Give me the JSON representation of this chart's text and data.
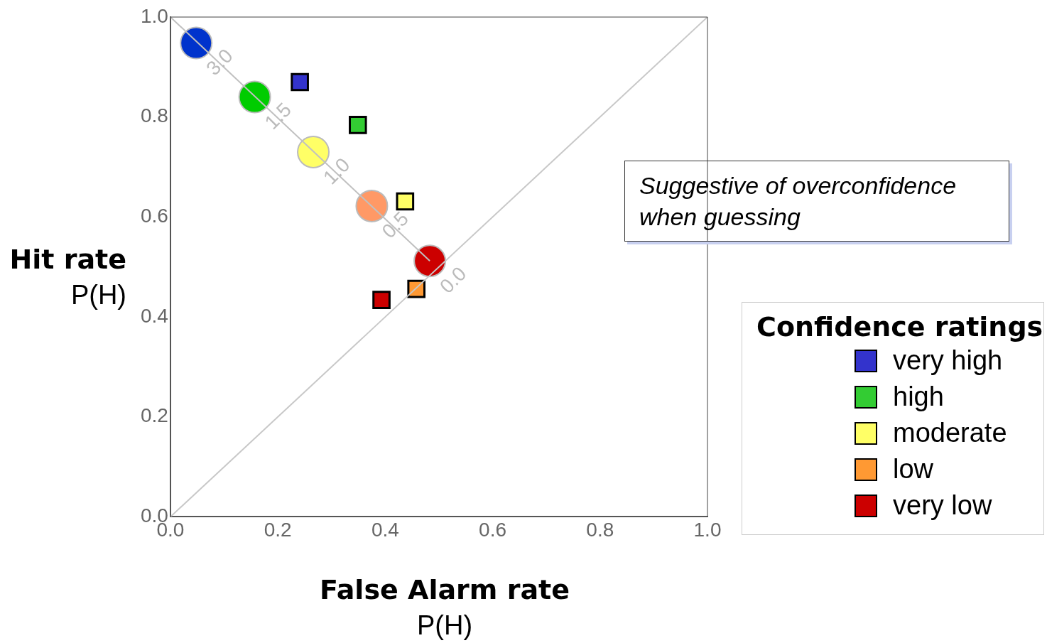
{
  "chart_data": {
    "type": "scatter",
    "xlabel": "False Alarm rate\nP(H)",
    "ylabel": "Hit rate\nP(H)",
    "legend_title": "Confidence ratings",
    "legend": "right",
    "marker": "square",
    "xlim": [
      0,
      1
    ],
    "ylim": [
      0,
      1
    ],
    "xticks": [
      {
        "value": 0,
        "label": "0.0"
      },
      {
        "value": 0.2,
        "label": "0.2"
      },
      {
        "value": 0.4,
        "label": "0.4"
      },
      {
        "value": 0.6,
        "label": "0.6"
      },
      {
        "value": 0.8,
        "label": "0.8"
      },
      {
        "value": 1,
        "label": "1.0"
      }
    ],
    "yticks": [
      {
        "value": 0,
        "label": "0.0"
      },
      {
        "value": 0.2,
        "label": "0.2"
      },
      {
        "value": 0.4,
        "label": "0.4"
      },
      {
        "value": 0.6,
        "label": "0.6"
      },
      {
        "value": 0.8,
        "label": "0.8"
      },
      {
        "value": 1,
        "label": "1.0"
      }
    ],
    "series": [
      {
        "type": "line",
        "marker": "none",
        "color": "#c8c8c8",
        "x": [
          0,
          1
        ],
        "values": [
          0,
          1
        ]
      },
      {
        "type": "line",
        "marker": "none",
        "color": "#c0c0c0",
        "x": [
          0,
          0.483
        ],
        "values": [
          1,
          0.512
        ]
      },
      {
        "type": "scatter",
        "marker": "circle",
        "colors": [
          "#0033cc",
          "#00cc00",
          "#ffff66",
          "#ff9966",
          "#cc0000"
        ],
        "x": [
          0.048,
          0.157,
          0.266,
          0.375,
          0.483
        ],
        "values": [
          0.948,
          0.84,
          0.73,
          0.622,
          0.512
        ]
      },
      {
        "name": "very high",
        "color": "#3333cc",
        "x": [
          0.241
        ],
        "values": [
          0.87
        ]
      },
      {
        "name": "high",
        "color": "#33cc33",
        "x": [
          0.349
        ],
        "values": [
          0.784
        ]
      },
      {
        "name": "moderate",
        "color": "#ffff66",
        "x": [
          0.437
        ],
        "values": [
          0.631
        ]
      },
      {
        "name": "low",
        "color": "#ff9933",
        "x": [
          0.458
        ],
        "values": [
          0.456
        ]
      },
      {
        "name": "very low",
        "color": "#cc0000",
        "x": [
          0.393
        ],
        "values": [
          0.434
        ]
      }
    ],
    "annotations": [
      {
        "text": "3.0",
        "x": 0.048,
        "y": 0.948
      },
      {
        "text": "1.5",
        "x": 0.157,
        "y": 0.84
      },
      {
        "text": "1.0",
        "x": 0.266,
        "y": 0.73
      },
      {
        "text": "0.5",
        "x": 0.375,
        "y": 0.622
      },
      {
        "text": "0.0",
        "x": 0.483,
        "y": 0.512
      },
      "Suggestive of overconfidence\nwhen guessing"
    ]
  }
}
